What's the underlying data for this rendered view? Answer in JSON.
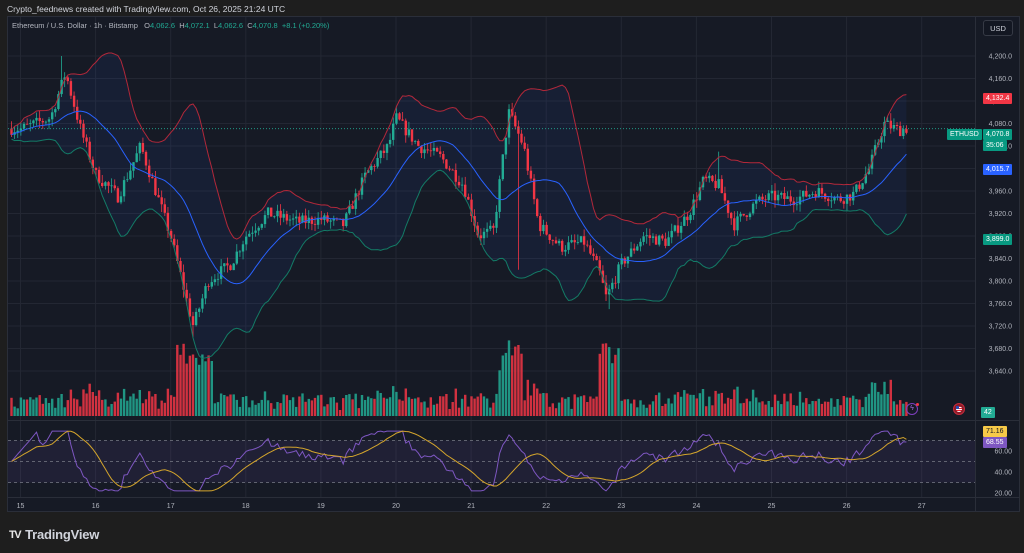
{
  "header": {
    "credit": "Crypto_feednews created with TradingView.com, Oct 26, 2025 21:24 UTC"
  },
  "legend": {
    "symbol": "Ethereum / U.S. Dollar · 1h · Bitstamp",
    "open_label": "O",
    "open": "4,062.6",
    "high_label": "H",
    "high": "4,072.1",
    "low_label": "L",
    "low": "4,062.6",
    "close_label": "C",
    "close": "4,070.8",
    "change": "+8.1 (+0.20%)"
  },
  "currency_button": "USD",
  "price_axis": {
    "ticks": [
      "4,200.0",
      "4,160.0",
      "4,120.0",
      "4,080.0",
      "4,040.0",
      "4,000.0",
      "3,960.0",
      "3,920.0",
      "3,880.0",
      "3,840.0",
      "3,800.0",
      "3,760.0",
      "3,720.0",
      "3,680.0",
      "3,640.0"
    ],
    "tags": {
      "bb_upper": {
        "value": "4,132.4",
        "color": "#f23645"
      },
      "symbol": {
        "label": "ETHUSD",
        "color": "#089981"
      },
      "last_price": {
        "value": "4,070.8",
        "countdown": "35:06",
        "color": "#089981"
      },
      "bb_basis": {
        "value": "4,015.7",
        "color": "#2962ff"
      },
      "bb_lower": {
        "value": "3,899.0",
        "color": "#089981"
      },
      "volume": {
        "value": "42",
        "color": "#22ab94"
      }
    }
  },
  "rsi_axis": {
    "ticks": [
      "60.00",
      "40.00",
      "20.00"
    ],
    "tags": {
      "rsi_ma": {
        "value": "71.16",
        "color": "#f7c948"
      },
      "rsi": {
        "value": "68.55",
        "color": "#7e57c2"
      }
    }
  },
  "time_axis": {
    "ticks": [
      "15",
      "16",
      "17",
      "18",
      "19",
      "20",
      "21",
      "22",
      "23",
      "24",
      "25",
      "26",
      "27"
    ]
  },
  "brand": {
    "logo": "TV",
    "name": "TradingView"
  },
  "colors": {
    "up": "#22ab94",
    "down": "#f23645",
    "bb_upper": "#b2283a",
    "bb_lower": "#137b66",
    "bb_basis": "#2962ff",
    "rsi": "#7e57c2",
    "rsi_ma": "#d4a52c",
    "background": "#161a25",
    "grid": "#232733"
  },
  "chart_data": {
    "type": "candlestick",
    "title": "Ethereum / U.S. Dollar · 1h · Bitstamp",
    "xlabel": "",
    "ylabel": "USD",
    "ylim": [
      3620,
      4240
    ],
    "grid": true,
    "x_ticks": [
      "15",
      "16",
      "17",
      "18",
      "19",
      "20",
      "21",
      "22",
      "23",
      "24",
      "25",
      "26",
      "27"
    ],
    "indicators": [
      "Bollinger Bands (upper/basis/lower)",
      "Volume",
      "RSI with MA"
    ],
    "last": {
      "open": 4062.6,
      "high": 4072.1,
      "low": 4062.6,
      "close": 4070.8,
      "change": 8.1,
      "change_pct": 0.2
    },
    "price_path_close": [
      {
        "x": "15.0",
        "v": 4070
      },
      {
        "x": "15.4",
        "v": 4090
      },
      {
        "x": "15.6",
        "v": 4170
      },
      {
        "x": "15.8",
        "v": 4070
      },
      {
        "x": "16.0",
        "v": 3990
      },
      {
        "x": "16.3",
        "v": 3950
      },
      {
        "x": "16.6",
        "v": 4040
      },
      {
        "x": "16.9",
        "v": 3920
      },
      {
        "x": "17.0",
        "v": 3880
      },
      {
        "x": "17.3",
        "v": 3720
      },
      {
        "x": "17.5",
        "v": 3800
      },
      {
        "x": "17.8",
        "v": 3830
      },
      {
        "x": "18.0",
        "v": 3880
      },
      {
        "x": "18.3",
        "v": 3920
      },
      {
        "x": "18.7",
        "v": 3905
      },
      {
        "x": "19.0",
        "v": 3910
      },
      {
        "x": "19.3",
        "v": 3900
      },
      {
        "x": "19.6",
        "v": 3990
      },
      {
        "x": "19.9",
        "v": 4040
      },
      {
        "x": "20.0",
        "v": 4090
      },
      {
        "x": "20.3",
        "v": 4040
      },
      {
        "x": "20.6",
        "v": 4020
      },
      {
        "x": "20.9",
        "v": 3970
      },
      {
        "x": "21.1",
        "v": 3880
      },
      {
        "x": "21.3",
        "v": 3890
      },
      {
        "x": "21.5",
        "v": 4100
      },
      {
        "x": "21.7",
        "v": 4040
      },
      {
        "x": "21.9",
        "v": 3900
      },
      {
        "x": "22.2",
        "v": 3860
      },
      {
        "x": "22.5",
        "v": 3870
      },
      {
        "x": "22.7",
        "v": 3820
      },
      {
        "x": "22.8",
        "v": 3770
      },
      {
        "x": "23.0",
        "v": 3830
      },
      {
        "x": "23.3",
        "v": 3880
      },
      {
        "x": "23.6",
        "v": 3870
      },
      {
        "x": "23.9",
        "v": 3920
      },
      {
        "x": "24.1",
        "v": 3980
      },
      {
        "x": "24.3",
        "v": 3970
      },
      {
        "x": "24.5",
        "v": 3900
      },
      {
        "x": "24.8",
        "v": 3940
      },
      {
        "x": "25.0",
        "v": 3950
      },
      {
        "x": "25.3",
        "v": 3945
      },
      {
        "x": "25.6",
        "v": 3960
      },
      {
        "x": "25.9",
        "v": 3945
      },
      {
        "x": "26.1",
        "v": 3955
      },
      {
        "x": "26.3",
        "v": 4000
      },
      {
        "x": "26.5",
        "v": 4080
      },
      {
        "x": "26.7",
        "v": 4068
      },
      {
        "x": "26.8",
        "v": 4071
      }
    ],
    "bollinger_last": {
      "upper": 4132.4,
      "basis": 4015.7,
      "lower": 3899.0
    },
    "volume_last": 42,
    "rsi": {
      "ylim": [
        20,
        80
      ],
      "bands": [
        30,
        50,
        70
      ],
      "last_rsi": 68.55,
      "last_ma": 71.16
    }
  }
}
